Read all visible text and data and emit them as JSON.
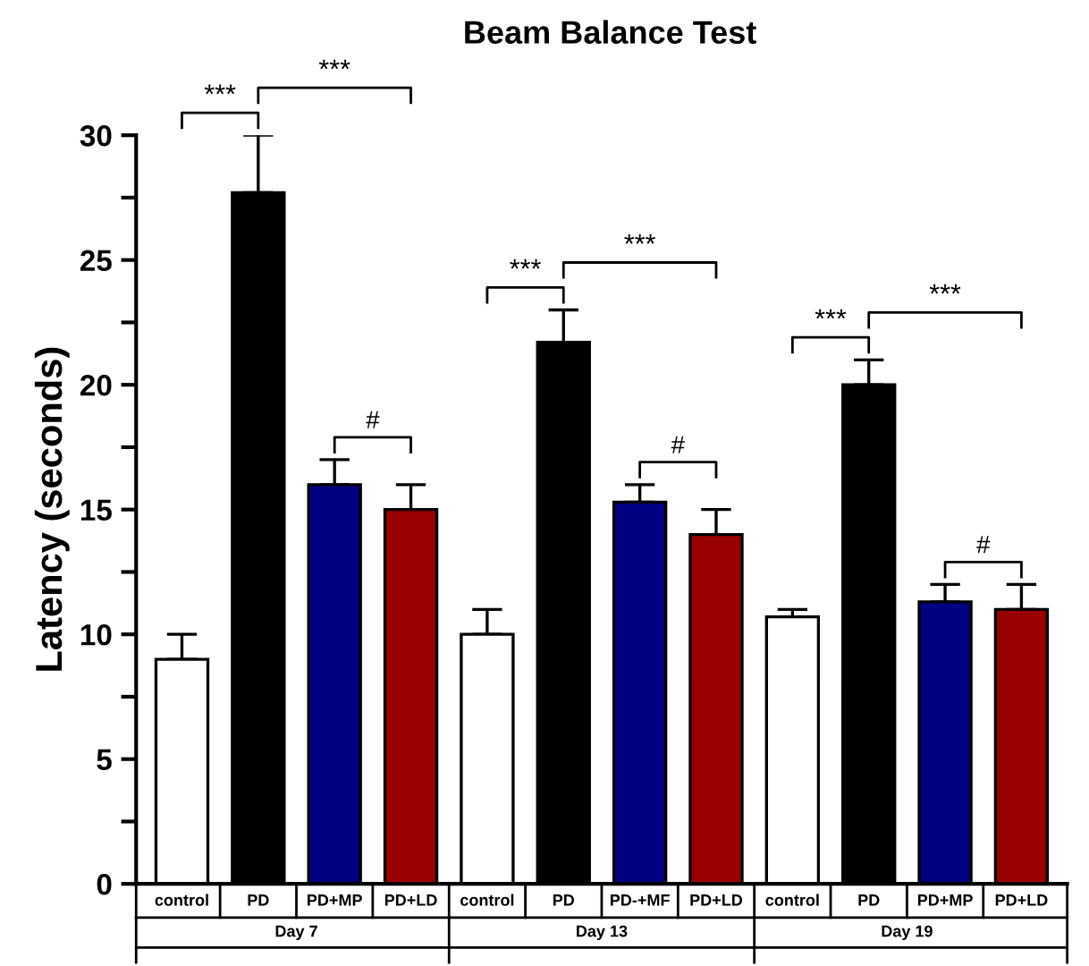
{
  "chart_data": {
    "type": "bar",
    "title": "Beam Balance Test",
    "ylabel": "Latency (seconds)",
    "categories": [
      "control",
      "PD",
      "PD+MP",
      "PD+LD",
      "control",
      "PD",
      "PD-+MF",
      "PD+LD",
      "control",
      "PD",
      "PD+MP",
      "PD+LD"
    ],
    "values": [
      9,
      27.7,
      16,
      15,
      10,
      21.7,
      15.3,
      14,
      10.7,
      20,
      11.3,
      11
    ],
    "errors": [
      [
        9,
        10
      ],
      [
        27.7,
        30
      ],
      [
        16,
        17
      ],
      [
        15,
        16
      ],
      [
        10,
        11
      ],
      [
        21.7,
        23
      ],
      [
        15.3,
        16
      ],
      [
        14,
        15
      ],
      [
        10.7,
        11
      ],
      [
        20,
        21
      ],
      [
        11.3,
        12
      ],
      [
        11,
        12
      ]
    ],
    "colors": [
      "#ffffff",
      "#000000",
      "#000080",
      "#990000",
      "#ffffff",
      "#000000",
      "#000080",
      "#990000",
      "#ffffff",
      "#000000",
      "#000080",
      "#990000"
    ],
    "ylim": [
      0,
      30
    ],
    "yticks": [
      0,
      {
        "value": 2.5,
        "label": null
      },
      5,
      {
        "value": 7.5,
        "label": null
      },
      10,
      {
        "value": 12.5,
        "label": null
      },
      15,
      {
        "value": 17.5,
        "label": null
      },
      20,
      {
        "value": 22.5,
        "label": null
      },
      25,
      {
        "value": 27.5,
        "label": null
      },
      30
    ],
    "annotations": [
      "***",
      "***",
      "#",
      "***",
      "***",
      "#",
      "***",
      "***",
      "#",
      "Day 7",
      "Day 13",
      "Day 19"
    ],
    "grid": false
  }
}
